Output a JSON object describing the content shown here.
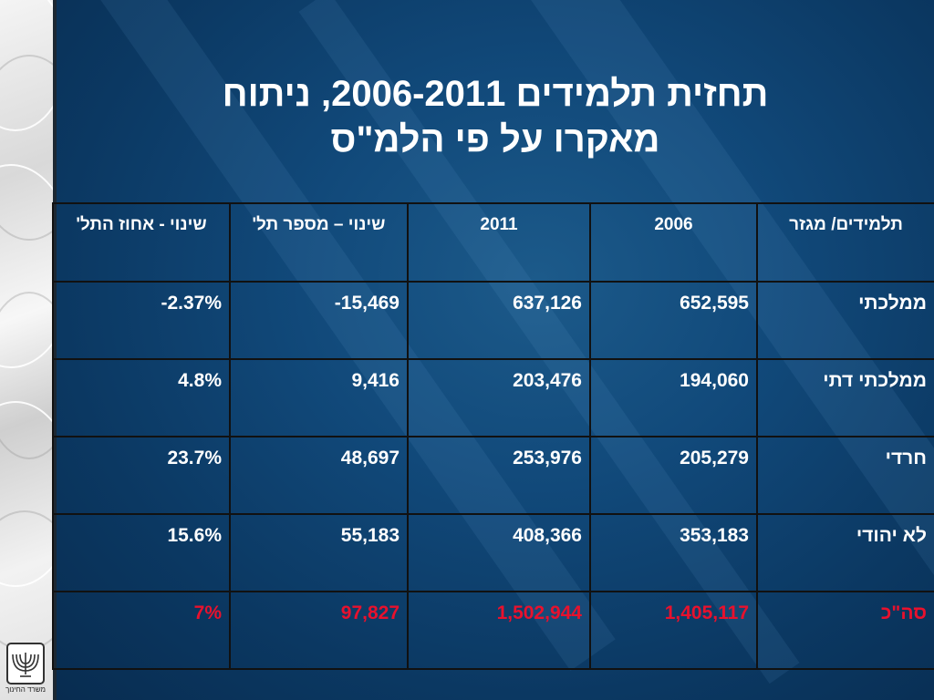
{
  "title": {
    "line1": "תחזית תלמידים 2006-2011, ניתוח",
    "line2": "מאקרו על פי הלמ\"ס"
  },
  "table": {
    "headers": {
      "sector": "תלמידים/ מגזר",
      "y2006": "2006",
      "y2011": "2011",
      "change_num": "שינוי – מספר תל'",
      "change_pct": "שינוי - אחוז התל'"
    },
    "rows": [
      {
        "sector": "ממלכתי",
        "y2006": "652,595",
        "y2011": "637,126",
        "change_num": "-15,469",
        "change_pct": "-2.37%"
      },
      {
        "sector": "ממלכתי דתי",
        "y2006": "194,060",
        "y2011": "203,476",
        "change_num": "9,416",
        "change_pct": "4.8%"
      },
      {
        "sector": "חרדי",
        "y2006": "205,279",
        "y2011": "253,976",
        "change_num": "48,697",
        "change_pct": "23.7%"
      },
      {
        "sector": "לא יהודי",
        "y2006": "353,183",
        "y2011": "408,366",
        "change_num": "55,183",
        "change_pct": "15.6%"
      },
      {
        "sector": "סה\"כ",
        "y2006": "1,405,117",
        "y2011": "1,502,944",
        "change_num": "97,827",
        "change_pct": "7%"
      }
    ]
  },
  "logo": {
    "caption": "משרד החינוך",
    "icon": "menorah-emblem-icon"
  },
  "colors": {
    "background": "#0d3a63",
    "text": "#ffffff",
    "total_row": "#e8112d"
  }
}
